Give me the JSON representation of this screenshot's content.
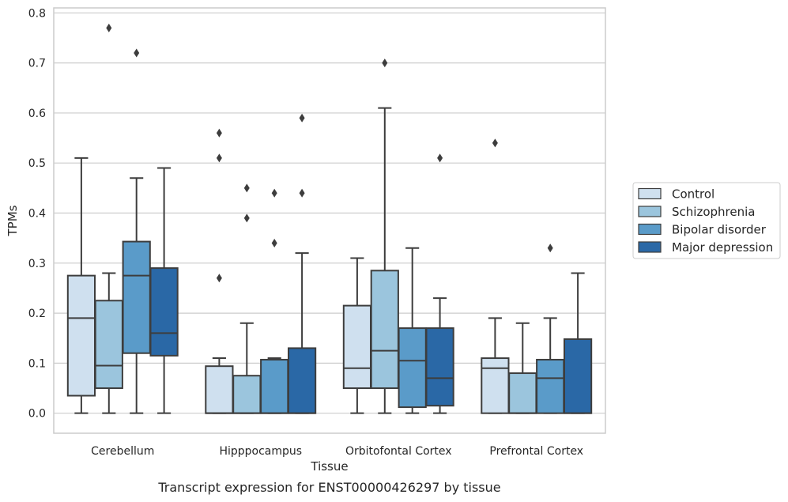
{
  "caption": "Transcript expression for ENST00000426297 by tissue",
  "chart_data": {
    "type": "box",
    "title": "",
    "xlabel": "Tissue",
    "ylabel": "TPMs",
    "ylim": [
      -0.04,
      0.81
    ],
    "yticks": [
      "0.0",
      "0.1",
      "0.2",
      "0.3",
      "0.4",
      "0.5",
      "0.6",
      "0.7",
      "0.8"
    ],
    "grid": "horizontal",
    "legend_position": "right",
    "categories": [
      "Cerebellum",
      "Hipppocampus",
      "Orbitofontal Cortex",
      "Prefrontal Cortex"
    ],
    "series": [
      {
        "name": "Control",
        "color": "#cfe0ef",
        "boxes": [
          {
            "whisker_low": 0.0,
            "q1": 0.035,
            "median": 0.19,
            "q3": 0.275,
            "whisker_high": 0.51,
            "outliers": []
          },
          {
            "whisker_low": 0.0,
            "q1": 0.0,
            "median": 0.0,
            "q3": 0.094,
            "whisker_high": 0.11,
            "outliers": [
              0.56,
              0.51,
              0.27
            ]
          },
          {
            "whisker_low": 0.0,
            "q1": 0.05,
            "median": 0.09,
            "q3": 0.215,
            "whisker_high": 0.31,
            "outliers": []
          },
          {
            "whisker_low": 0.0,
            "q1": 0.0,
            "median": 0.09,
            "q3": 0.11,
            "whisker_high": 0.19,
            "outliers": [
              0.54
            ]
          }
        ]
      },
      {
        "name": "Schizophrenia",
        "color": "#9bc5dd",
        "boxes": [
          {
            "whisker_low": 0.0,
            "q1": 0.05,
            "median": 0.095,
            "q3": 0.225,
            "whisker_high": 0.28,
            "outliers": [
              0.77
            ]
          },
          {
            "whisker_low": 0.0,
            "q1": 0.0,
            "median": 0.0,
            "q3": 0.075,
            "whisker_high": 0.18,
            "outliers": [
              0.45,
              0.39
            ]
          },
          {
            "whisker_low": 0.0,
            "q1": 0.05,
            "median": 0.125,
            "q3": 0.285,
            "whisker_high": 0.61,
            "outliers": [
              0.7
            ]
          },
          {
            "whisker_low": 0.0,
            "q1": 0.0,
            "median": 0.0,
            "q3": 0.08,
            "whisker_high": 0.18,
            "outliers": []
          }
        ]
      },
      {
        "name": "Bipolar disorder",
        "color": "#5a9bc9",
        "boxes": [
          {
            "whisker_low": 0.0,
            "q1": 0.12,
            "median": 0.275,
            "q3": 0.343,
            "whisker_high": 0.47,
            "outliers": [
              0.72
            ]
          },
          {
            "whisker_low": 0.0,
            "q1": 0.0,
            "median": 0.0,
            "q3": 0.107,
            "whisker_high": 0.11,
            "outliers": [
              0.44,
              0.34
            ]
          },
          {
            "whisker_low": 0.0,
            "q1": 0.012,
            "median": 0.105,
            "q3": 0.17,
            "whisker_high": 0.33,
            "outliers": []
          },
          {
            "whisker_low": 0.0,
            "q1": 0.0,
            "median": 0.07,
            "q3": 0.107,
            "whisker_high": 0.19,
            "outliers": [
              0.33
            ]
          }
        ]
      },
      {
        "name": "Major depression",
        "color": "#2a68a6",
        "boxes": [
          {
            "whisker_low": 0.0,
            "q1": 0.115,
            "median": 0.16,
            "q3": 0.29,
            "whisker_high": 0.49,
            "outliers": []
          },
          {
            "whisker_low": 0.0,
            "q1": 0.0,
            "median": 0.0,
            "q3": 0.13,
            "whisker_high": 0.32,
            "outliers": [
              0.59,
              0.44
            ]
          },
          {
            "whisker_low": 0.0,
            "q1": 0.015,
            "median": 0.07,
            "q3": 0.17,
            "whisker_high": 0.23,
            "outliers": [
              0.51
            ]
          },
          {
            "whisker_low": 0.0,
            "q1": 0.0,
            "median": 0.0,
            "q3": 0.148,
            "whisker_high": 0.28,
            "outliers": []
          }
        ]
      }
    ]
  }
}
